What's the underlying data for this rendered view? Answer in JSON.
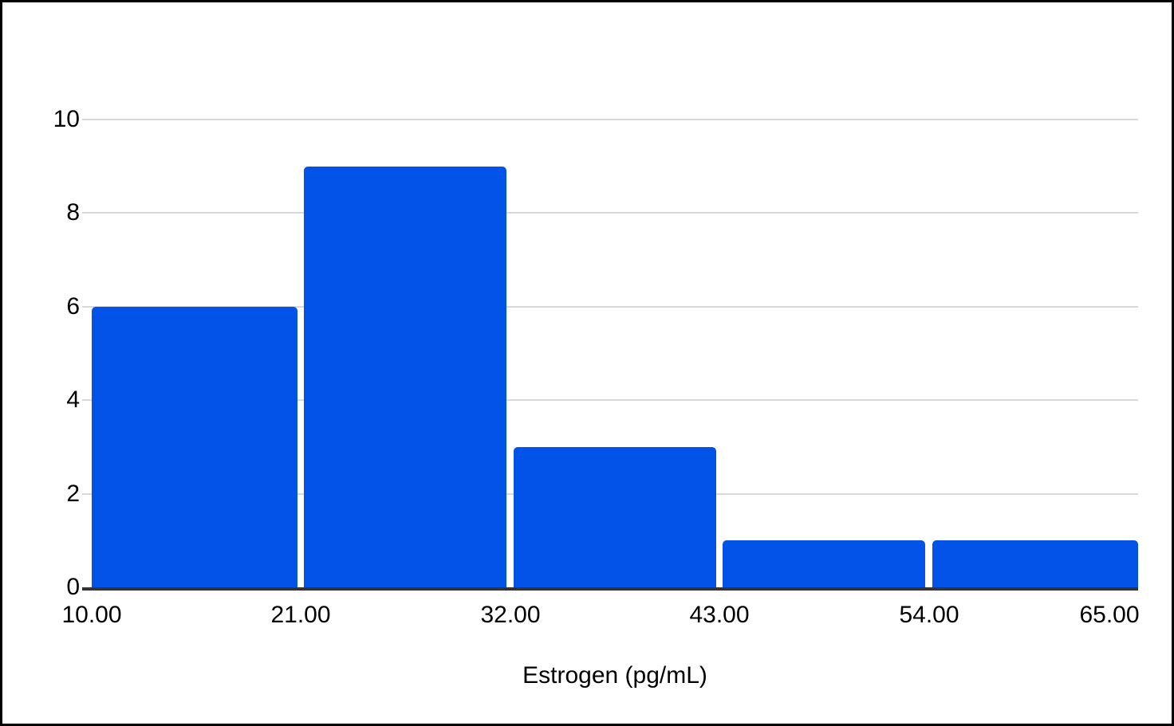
{
  "chart": {
    "colors": {
      "bar": "#0353e9",
      "gridline": "#d9d9d9",
      "baseline": "#333333",
      "text": "#000000",
      "background": "#ffffff",
      "frame_border": "#000000"
    }
  },
  "chart_data": {
    "type": "bar",
    "subtype": "histogram",
    "title": "",
    "xlabel": "Estrogen (pg/mL)",
    "ylabel": "",
    "bin_edges": [
      10,
      21,
      32,
      43,
      54,
      65
    ],
    "categories": [
      "10.00-21.00",
      "21.00-32.00",
      "32.00-43.00",
      "43.00-54.00",
      "54.00-65.00"
    ],
    "values": [
      6,
      9,
      3,
      1,
      1
    ],
    "xlim": [
      10,
      65
    ],
    "ylim": [
      0,
      10
    ],
    "x_tick_labels": [
      "10.00",
      "21.00",
      "32.00",
      "43.00",
      "54.00",
      "65.00"
    ],
    "y_ticks": [
      0,
      2,
      4,
      6,
      8,
      10
    ],
    "y_tick_labels": [
      "0",
      "2",
      "4",
      "6",
      "8",
      "10"
    ],
    "grid": "horizontal",
    "legend": "none"
  }
}
